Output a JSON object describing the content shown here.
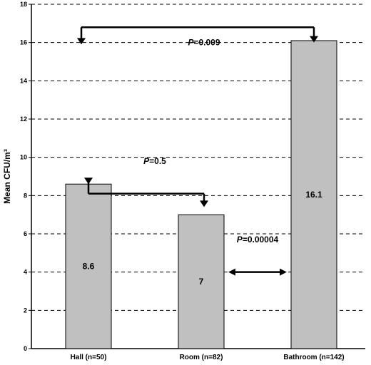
{
  "chart_data": {
    "type": "bar",
    "categories": [
      "Hall (n=50)",
      "Room (n=82)",
      "Bathroom (n=142)"
    ],
    "values": [
      8.6,
      7,
      16.1
    ],
    "data_labels": [
      "8.6",
      "7",
      "16.1"
    ],
    "title": "",
    "xlabel": "",
    "ylabel": "Mean CFU/m³",
    "ylim": [
      0,
      18
    ],
    "yticks": [
      0,
      2,
      4,
      6,
      8,
      10,
      12,
      14,
      16,
      18
    ],
    "grid": "dashed horizontal",
    "bar_color": "#c0c0c0",
    "annotations": [
      {
        "from": "Hall (n=50)",
        "to": "Bathroom (n=142)",
        "bracket_level": 16.8,
        "p_prefix": "P",
        "p_value": "=0.009"
      },
      {
        "from": "Hall (n=50)",
        "to": "Room (n=82)",
        "bracket_level": 8.1,
        "p_prefix": "P",
        "p_value": "=0.5"
      },
      {
        "from": "Room (n=82)",
        "to": "Bathroom (n=142)",
        "level": 4.0,
        "p_prefix": "P",
        "p_value": "=0.00004"
      }
    ]
  }
}
